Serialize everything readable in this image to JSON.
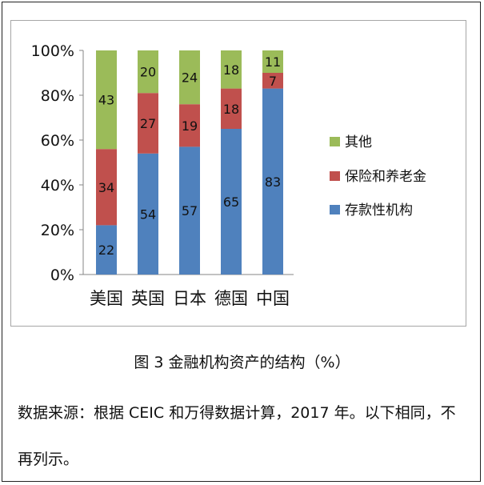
{
  "chart_data": {
    "type": "bar",
    "stacked": true,
    "categories": [
      "美国",
      "英国",
      "日本",
      "德国",
      "中国"
    ],
    "series": [
      {
        "name": "存款性机构",
        "values": [
          22,
          54,
          57,
          65,
          83
        ],
        "color": "#4f81bd"
      },
      {
        "name": "保险和养老金",
        "values": [
          34,
          27,
          19,
          18,
          7
        ],
        "color": "#c0504d"
      },
      {
        "name": "其他",
        "values": [
          43,
          20,
          24,
          18,
          11
        ],
        "color": "#9bbb59"
      }
    ],
    "y_ticks": [
      "0%",
      "20%",
      "40%",
      "60%",
      "80%",
      "100%"
    ],
    "ylim": [
      0,
      100
    ],
    "legend_position": "right",
    "grid": false
  },
  "caption": "图 3  金融机构资产的结构（%）",
  "note": "数据来源：根据 CEIC 和万得数据计算，2017 年。以下相同，不再列示。"
}
